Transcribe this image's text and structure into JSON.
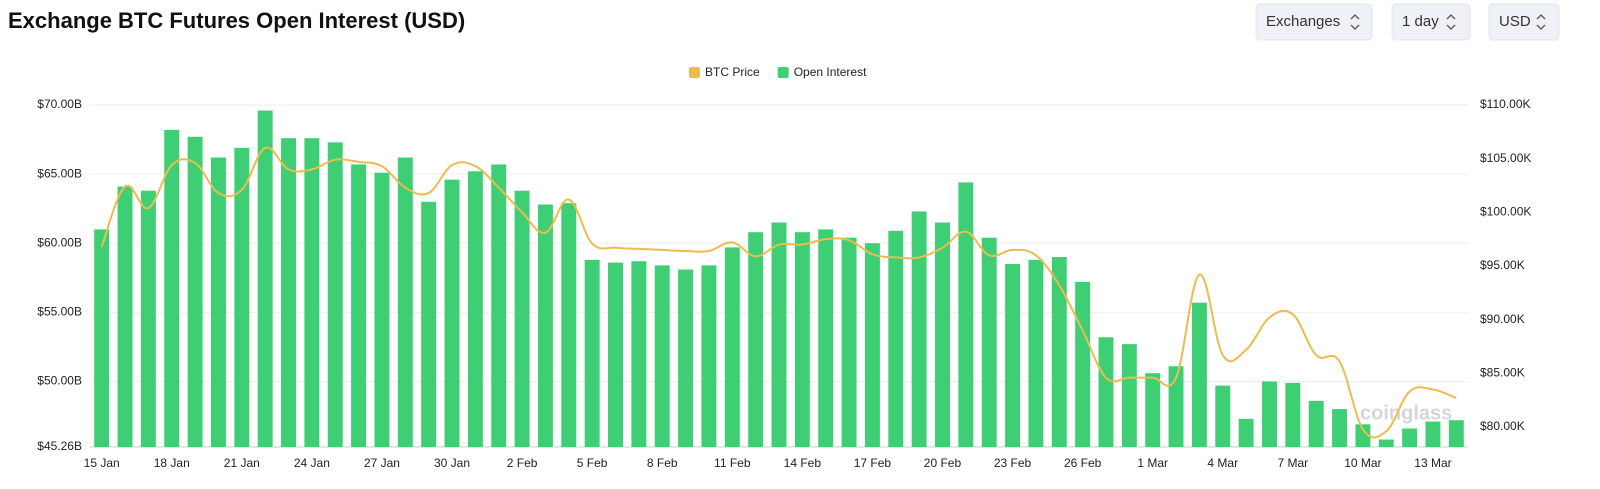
{
  "header": {
    "title": "Exchange BTC Futures Open Interest (USD)",
    "controls": [
      "Exchanges",
      "1 day",
      "USD"
    ]
  },
  "watermark": "coinglass",
  "chart_data": {
    "type": "bar",
    "categories": [
      "15 Jan",
      null,
      null,
      "18 Jan",
      null,
      null,
      "21 Jan",
      null,
      null,
      "24 Jan",
      null,
      null,
      "27 Jan",
      null,
      null,
      "30 Jan",
      null,
      null,
      "2 Feb",
      null,
      null,
      "5 Feb",
      null,
      null,
      "8 Feb",
      null,
      null,
      "11 Feb",
      null,
      null,
      "14 Feb",
      null,
      null,
      "17 Feb",
      null,
      null,
      "20 Feb",
      null,
      null,
      "23 Feb",
      null,
      null,
      "26 Feb",
      null,
      null,
      "1 Mar",
      null,
      null,
      "4 Mar",
      null,
      null,
      "7 Mar",
      null,
      null,
      "10 Mar",
      null,
      null,
      "13 Mar",
      null
    ],
    "series": [
      {
        "name": "BTC Price",
        "type": "line",
        "axis": "y2",
        "color": "#ecbc4f",
        "values": [
          96.8,
          102.4,
          100.4,
          104.4,
          104.6,
          101.8,
          102.1,
          106.0,
          104.0,
          104.0,
          104.9,
          104.7,
          104.3,
          102.3,
          101.8,
          104.4,
          104.3,
          102.3,
          100.0,
          98.1,
          101.2,
          97.1,
          96.7,
          96.6,
          96.5,
          96.4,
          96.4,
          97.2,
          95.9,
          97.0,
          97.0,
          97.5,
          97.4,
          96.1,
          95.8,
          95.8,
          96.7,
          98.2,
          96.0,
          96.5,
          96.0,
          93.2,
          89.0,
          84.6,
          84.6,
          84.6,
          84.6,
          94.2,
          86.7,
          87.2,
          90.2,
          90.5,
          86.7,
          86.1,
          79.8,
          79.6,
          83.3,
          83.5,
          82.7
        ]
      },
      {
        "name": "Open Interest",
        "type": "bar",
        "color": "#3ecf74",
        "values": [
          61.0,
          64.1,
          63.8,
          68.2,
          67.7,
          66.2,
          66.9,
          69.6,
          67.6,
          67.6,
          67.3,
          65.7,
          65.1,
          66.2,
          63.0,
          64.6,
          65.2,
          65.7,
          63.8,
          62.8,
          62.9,
          58.8,
          58.6,
          58.7,
          58.4,
          58.1,
          58.4,
          59.7,
          60.8,
          61.5,
          60.8,
          61.0,
          60.4,
          60.0,
          60.9,
          62.3,
          61.5,
          64.4,
          60.4,
          58.5,
          58.8,
          59.0,
          57.2,
          53.2,
          52.7,
          50.6,
          51.1,
          55.7,
          49.7,
          47.3,
          50.0,
          49.9,
          48.6,
          48.0,
          46.9,
          45.8,
          46.6,
          47.1,
          47.2
        ]
      }
    ],
    "ylim": [
      45.26,
      70
    ],
    "yticks": [
      {
        "value": 45.26,
        "label": "$45.26B"
      },
      {
        "value": 50,
        "label": "$50.00B"
      },
      {
        "value": 55,
        "label": "$55.00B"
      },
      {
        "value": 60,
        "label": "$60.00B"
      },
      {
        "value": 65,
        "label": "$65.00B"
      },
      {
        "value": 70,
        "label": "$70.00B"
      }
    ],
    "y2lim": [
      78.14,
      110
    ],
    "y2ticks": [
      {
        "value": 80,
        "label": "$80.00K"
      },
      {
        "value": 85,
        "label": "$85.00K"
      },
      {
        "value": 90,
        "label": "$90.00K"
      },
      {
        "value": 95,
        "label": "$95.00K"
      },
      {
        "value": 100,
        "label": "$100.00K"
      },
      {
        "value": 105,
        "label": "$105.00K"
      },
      {
        "value": 110,
        "label": "$110.00K"
      }
    ],
    "grid": true,
    "legend": "top"
  }
}
